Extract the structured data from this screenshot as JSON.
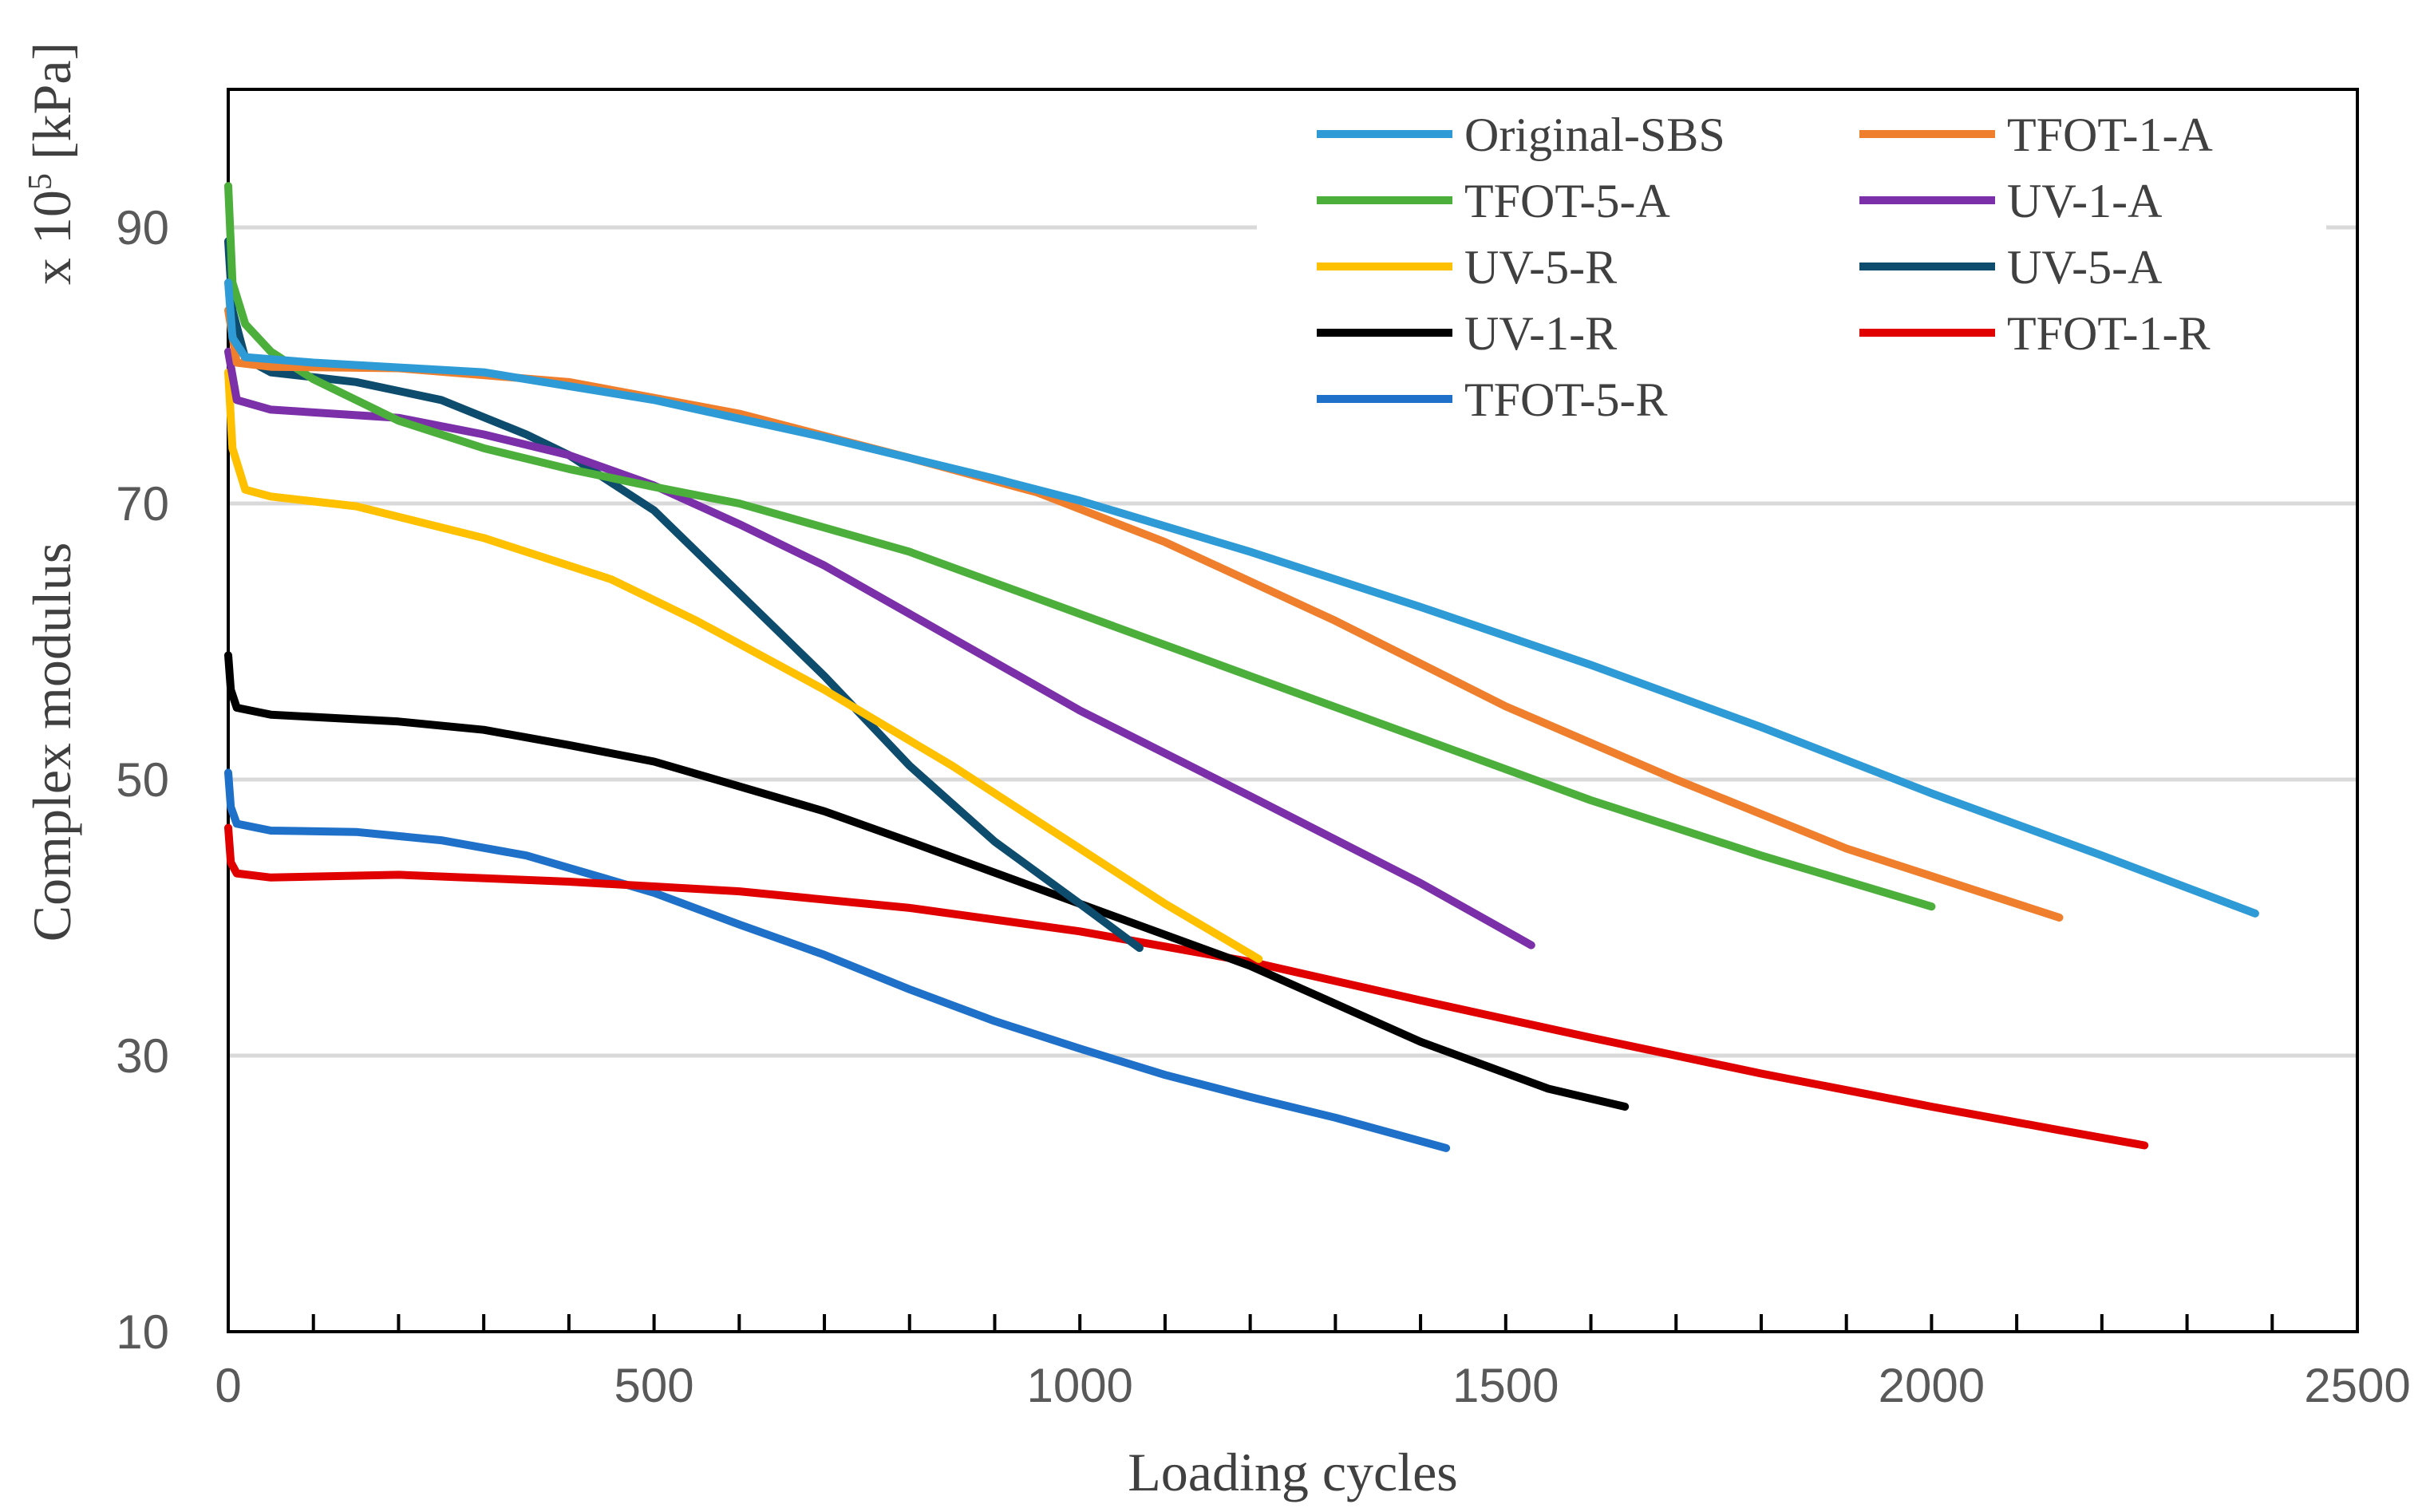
{
  "chart_data": {
    "type": "line",
    "title": "",
    "xlabel": "Loading cycles",
    "ylabel": "Complex modulus",
    "yunit_prefix": "x 10",
    "yunit_exp": "5",
    "yunit_suffix": " [kPa]",
    "xlim": [
      0,
      2500
    ],
    "ylim": [
      10,
      100
    ],
    "xticks": [
      0,
      500,
      1000,
      1500,
      2000,
      2500
    ],
    "yticks": [
      10,
      30,
      50,
      70,
      90
    ],
    "grid": "horizontal",
    "legend_position": "top-right",
    "series": [
      {
        "name": "Original-SBS",
        "color": "#2E9BD6",
        "points": [
          [
            0,
            86
          ],
          [
            5,
            82
          ],
          [
            20,
            80.6
          ],
          [
            100,
            80.2
          ],
          [
            300,
            79.5
          ],
          [
            500,
            77.5
          ],
          [
            700,
            74.8
          ],
          [
            900,
            71.8
          ],
          [
            1000,
            70.2
          ],
          [
            1200,
            66.5
          ],
          [
            1400,
            62.5
          ],
          [
            1600,
            58.3
          ],
          [
            1800,
            53.8
          ],
          [
            2000,
            49
          ],
          [
            2200,
            44.5
          ],
          [
            2380,
            40.3
          ]
        ]
      },
      {
        "name": "TFOT-1-A",
        "color": "#F07F2D",
        "points": [
          [
            0,
            84
          ],
          [
            10,
            80.2
          ],
          [
            50,
            79.9
          ],
          [
            200,
            79.8
          ],
          [
            400,
            78.8
          ],
          [
            600,
            76.5
          ],
          [
            800,
            73.3
          ],
          [
            950,
            70.8
          ],
          [
            1100,
            67.2
          ],
          [
            1300,
            61.5
          ],
          [
            1500,
            55.3
          ],
          [
            1700,
            50
          ],
          [
            1900,
            45
          ],
          [
            2050,
            42
          ],
          [
            2150,
            40
          ]
        ]
      },
      {
        "name": "TFOT-5-A",
        "color": "#4CAF3C",
        "points": [
          [
            0,
            93
          ],
          [
            5,
            86
          ],
          [
            20,
            83
          ],
          [
            50,
            81
          ],
          [
            100,
            79
          ],
          [
            200,
            76
          ],
          [
            300,
            74
          ],
          [
            400,
            72.5
          ],
          [
            500,
            71.2
          ],
          [
            600,
            70
          ],
          [
            800,
            66.5
          ],
          [
            1000,
            62
          ],
          [
            1200,
            57.5
          ],
          [
            1400,
            53
          ],
          [
            1600,
            48.5
          ],
          [
            1800,
            44.5
          ],
          [
            2000,
            40.8
          ]
        ]
      },
      {
        "name": "UV-1-A",
        "color": "#7B2FA8",
        "points": [
          [
            0,
            81
          ],
          [
            10,
            77.5
          ],
          [
            50,
            76.8
          ],
          [
            200,
            76.2
          ],
          [
            300,
            75
          ],
          [
            400,
            73.5
          ],
          [
            500,
            71.3
          ],
          [
            600,
            68.5
          ],
          [
            700,
            65.5
          ],
          [
            800,
            62
          ],
          [
            1000,
            55
          ],
          [
            1200,
            48.8
          ],
          [
            1400,
            42.5
          ],
          [
            1530,
            38
          ]
        ]
      },
      {
        "name": "UV-5-R",
        "color": "#FFC000",
        "points": [
          [
            0,
            79.5
          ],
          [
            5,
            74
          ],
          [
            20,
            71
          ],
          [
            50,
            70.5
          ],
          [
            150,
            69.8
          ],
          [
            300,
            67.5
          ],
          [
            450,
            64.5
          ],
          [
            550,
            61.5
          ],
          [
            700,
            56.5
          ],
          [
            850,
            51
          ],
          [
            1000,
            45
          ],
          [
            1100,
            41
          ],
          [
            1210,
            37
          ]
        ]
      },
      {
        "name": "UV-5-A",
        "color": "#0E4C6E",
        "points": [
          [
            0,
            89
          ],
          [
            5,
            84
          ],
          [
            20,
            80.5
          ],
          [
            50,
            79.5
          ],
          [
            150,
            78.8
          ],
          [
            250,
            77.5
          ],
          [
            350,
            75
          ],
          [
            400,
            73.5
          ],
          [
            500,
            69.5
          ],
          [
            600,
            63.5
          ],
          [
            700,
            57.5
          ],
          [
            800,
            51
          ],
          [
            900,
            45.5
          ],
          [
            1000,
            41
          ],
          [
            1070,
            37.8
          ]
        ]
      },
      {
        "name": "UV-1-R",
        "color": "#000000",
        "points": [
          [
            0,
            59
          ],
          [
            3,
            56.5
          ],
          [
            10,
            55.2
          ],
          [
            50,
            54.7
          ],
          [
            200,
            54.2
          ],
          [
            300,
            53.6
          ],
          [
            400,
            52.5
          ],
          [
            500,
            51.3
          ],
          [
            600,
            49.5
          ],
          [
            700,
            47.7
          ],
          [
            800,
            45.5
          ],
          [
            1000,
            41
          ],
          [
            1200,
            36.5
          ],
          [
            1400,
            31
          ],
          [
            1550,
            27.6
          ],
          [
            1640,
            26.3
          ]
        ]
      },
      {
        "name": "TFOT-1-R",
        "color": "#E00000",
        "points": [
          [
            0,
            46.5
          ],
          [
            3,
            44
          ],
          [
            10,
            43.2
          ],
          [
            50,
            42.9
          ],
          [
            200,
            43.1
          ],
          [
            400,
            42.6
          ],
          [
            600,
            41.9
          ],
          [
            800,
            40.7
          ],
          [
            1000,
            39
          ],
          [
            1200,
            36.8
          ],
          [
            1400,
            34
          ],
          [
            1600,
            31.3
          ],
          [
            1800,
            28.7
          ],
          [
            2000,
            26.3
          ],
          [
            2150,
            24.6
          ],
          [
            2250,
            23.5
          ]
        ]
      },
      {
        "name": "TFOT-5-R",
        "color": "#1F70C9",
        "points": [
          [
            0,
            50.5
          ],
          [
            3,
            48
          ],
          [
            10,
            46.8
          ],
          [
            50,
            46.3
          ],
          [
            150,
            46.2
          ],
          [
            250,
            45.6
          ],
          [
            350,
            44.5
          ],
          [
            500,
            41.8
          ],
          [
            600,
            39.5
          ],
          [
            700,
            37.3
          ],
          [
            800,
            34.8
          ],
          [
            900,
            32.5
          ],
          [
            1000,
            30.5
          ],
          [
            1100,
            28.6
          ],
          [
            1200,
            27
          ],
          [
            1300,
            25.5
          ],
          [
            1430,
            23.3
          ]
        ]
      }
    ]
  }
}
